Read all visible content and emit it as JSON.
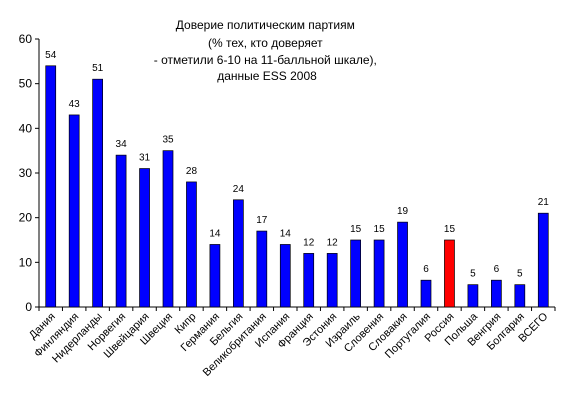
{
  "chart_data": {
    "type": "bar",
    "title_lines": [
      "Доверие политическим партиям",
      "(% тех, кто доверяет",
      "- отметили 6-10 на 11-балльной шкале),",
      "данные ESS 2008"
    ],
    "xlabel": "",
    "ylabel": "",
    "ylim": [
      0,
      60
    ],
    "yticks": [
      0,
      10,
      20,
      30,
      40,
      50,
      60
    ],
    "grid": false,
    "legend": "none",
    "categories": [
      "Дания",
      "Финляндия",
      "Нидерланды",
      "Норвегия",
      "Швейцария",
      "Швеция",
      "Кипр",
      "Германия",
      "Бельгия",
      "Великобритания",
      "Испания",
      "Франция",
      "Эстония",
      "Израиль",
      "Словения",
      "Словакия",
      "Португалия",
      "Россия",
      "Польша",
      "Венгрия",
      "Болгария",
      "ВСЕГО"
    ],
    "values": [
      54,
      43,
      51,
      34,
      31,
      35,
      28,
      14,
      24,
      17,
      14,
      12,
      12,
      15,
      15,
      19,
      6,
      15,
      5,
      6,
      5,
      21
    ],
    "labels": [
      "54",
      "43",
      "51",
      "34",
      "31",
      "35",
      "28",
      "14",
      "24",
      "17",
      "14",
      "12",
      "12",
      "15",
      "15",
      "19",
      "6",
      "15",
      "5",
      "6",
      "5",
      "21"
    ],
    "colors": {
      "default": "#0000ff",
      "highlight": "#ff0000",
      "highlight_category": "Россия",
      "axis": "#000000"
    }
  }
}
